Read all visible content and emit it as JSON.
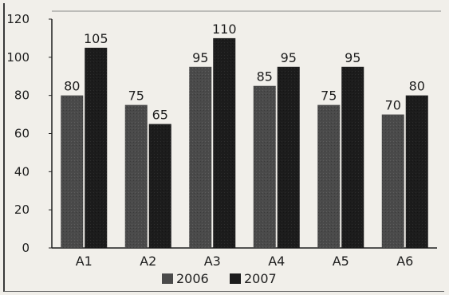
{
  "chart_data": {
    "type": "bar",
    "title": "",
    "xlabel": "",
    "ylabel": "",
    "categories": [
      "A1",
      "A2",
      "A3",
      "A4",
      "A5",
      "A6"
    ],
    "series": [
      {
        "name": "2006",
        "values": [
          80,
          75,
          95,
          85,
          75,
          70
        ],
        "color": "#4a4a4a"
      },
      {
        "name": "2007",
        "values": [
          105,
          65,
          110,
          95,
          95,
          80
        ],
        "color": "#1c1c1c"
      }
    ],
    "ylim": [
      0,
      120
    ],
    "yticks": [
      0,
      20,
      40,
      60,
      80,
      100,
      120
    ],
    "grid": false,
    "legend_position": "bottom-center",
    "data_labels": true
  }
}
